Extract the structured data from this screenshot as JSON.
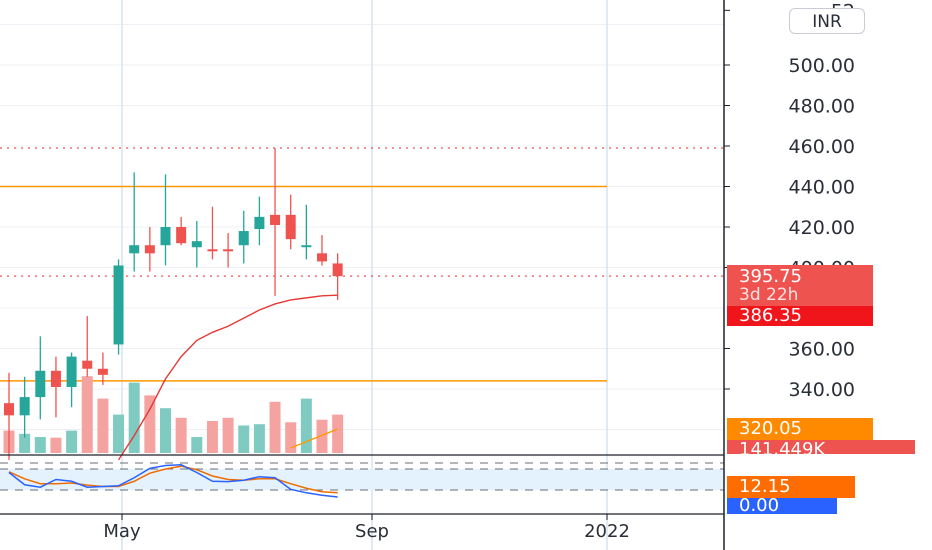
{
  "currency": "INR",
  "colors": {
    "up": "#26a69a",
    "down": "#ef5350",
    "vol_up": "#7fcbc1",
    "vol_down": "#f5a3a1",
    "level_line": "#ff9800",
    "ma_line": "#e53935",
    "stoch_k": "#2962ff",
    "stoch_d": "#ef6c00",
    "stoch_band": "#e3f2fd"
  },
  "chart_data": {
    "type": "candlestick",
    "price_axis": {
      "ticks": [
        "52",
        "500.00",
        "480.00",
        "460.00",
        "440.00",
        "420.00",
        "400.00",
        "360.00",
        "340.00"
      ],
      "range": [
        300,
        530
      ]
    },
    "time_axis": {
      "ticks": [
        "May",
        "Sep",
        "2022"
      ]
    },
    "candles": [
      {
        "o": 333,
        "h": 348,
        "l": 305,
        "c": 327
      },
      {
        "o": 327,
        "h": 346,
        "l": 316,
        "c": 336
      },
      {
        "o": 336,
        "h": 366,
        "l": 325,
        "c": 349
      },
      {
        "o": 349,
        "h": 356,
        "l": 326,
        "c": 341
      },
      {
        "o": 341,
        "h": 358,
        "l": 331,
        "c": 356
      },
      {
        "o": 354,
        "h": 376,
        "l": 346,
        "c": 350
      },
      {
        "o": 350,
        "h": 358,
        "l": 342,
        "c": 347
      },
      {
        "o": 362,
        "h": 404,
        "l": 357,
        "c": 401
      },
      {
        "o": 407,
        "h": 447,
        "l": 398,
        "c": 411
      },
      {
        "o": 411,
        "h": 420,
        "l": 398,
        "c": 407
      },
      {
        "o": 411,
        "h": 446,
        "l": 401,
        "c": 420
      },
      {
        "o": 420,
        "h": 425,
        "l": 411,
        "c": 412
      },
      {
        "o": 410,
        "h": 423,
        "l": 400,
        "c": 413
      },
      {
        "o": 409,
        "h": 430,
        "l": 404,
        "c": 408
      },
      {
        "o": 409,
        "h": 417,
        "l": 400,
        "c": 408
      },
      {
        "o": 411,
        "h": 428,
        "l": 402,
        "c": 418
      },
      {
        "o": 419,
        "h": 435,
        "l": 411,
        "c": 425
      },
      {
        "o": 426,
        "h": 459,
        "l": 386,
        "c": 421
      },
      {
        "o": 426,
        "h": 436,
        "l": 409,
        "c": 414
      },
      {
        "o": 411,
        "h": 431,
        "l": 404,
        "c": 411
      },
      {
        "o": 407,
        "h": 416,
        "l": 401,
        "c": 403
      },
      {
        "o": 402,
        "h": 407,
        "l": 384,
        "c": 395.75
      }
    ],
    "volumes": [
      35,
      30,
      25,
      24,
      35,
      120,
      85,
      60,
      110,
      90,
      70,
      55,
      25,
      50,
      55,
      43,
      45,
      80,
      48,
      85,
      52,
      60
    ],
    "horizontal_levels": [
      440,
      344
    ],
    "ma_values": [
      null,
      null,
      null,
      null,
      null,
      null,
      null,
      305,
      317,
      330,
      345,
      356,
      364,
      368,
      371,
      375,
      379,
      382,
      384,
      385,
      386,
      386.35
    ],
    "stochastic": {
      "k": [
        70,
        35,
        28,
        50,
        45,
        28,
        30,
        32,
        55,
        82,
        90,
        92,
        70,
        45,
        44,
        48,
        58,
        55,
        22,
        12,
        5,
        0
      ],
      "d": [
        72,
        52,
        38,
        38,
        40,
        34,
        30,
        30,
        45,
        68,
        80,
        88,
        78,
        60,
        50,
        48,
        52,
        52,
        38,
        25,
        15,
        12.15
      ],
      "bands": [
        80,
        20
      ]
    },
    "last_price": "395.75",
    "countdown": "3d 22h",
    "ma_label": "386.35",
    "volume_value_label": "320.05",
    "volume_label": "141.449K",
    "stoch_d_label": "12.15",
    "stoch_k_label": "0.00"
  }
}
